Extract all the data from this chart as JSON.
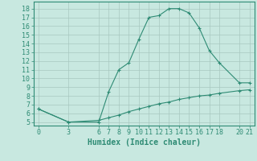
{
  "line1_x": [
    0,
    3,
    6,
    7,
    8,
    9,
    10,
    11,
    12,
    13,
    14,
    15,
    16,
    17,
    18,
    20,
    21
  ],
  "line1_y": [
    6.5,
    5.0,
    5.0,
    8.5,
    11.0,
    11.8,
    14.5,
    17.0,
    17.2,
    18.0,
    18.0,
    17.5,
    15.8,
    13.2,
    11.8,
    9.5,
    9.5
  ],
  "line2_x": [
    0,
    3,
    6,
    7,
    8,
    9,
    10,
    11,
    12,
    13,
    14,
    15,
    16,
    17,
    18,
    20,
    21
  ],
  "line2_y": [
    6.5,
    5.0,
    5.2,
    5.5,
    5.8,
    6.2,
    6.5,
    6.8,
    7.1,
    7.3,
    7.6,
    7.8,
    8.0,
    8.1,
    8.3,
    8.6,
    8.7
  ],
  "line_color": "#2e8b74",
  "bg_color": "#c8e8e0",
  "grid_color": "#a8c8c0",
  "xlabel": "Humidex (Indice chaleur)",
  "xticks": [
    0,
    3,
    6,
    7,
    8,
    9,
    10,
    11,
    12,
    13,
    14,
    15,
    16,
    17,
    18,
    20,
    21
  ],
  "yticks": [
    5,
    6,
    7,
    8,
    9,
    10,
    11,
    12,
    13,
    14,
    15,
    16,
    17,
    18
  ],
  "xlim": [
    -0.5,
    21.5
  ],
  "ylim": [
    4.6,
    18.8
  ],
  "xlabel_fontsize": 7,
  "tick_fontsize": 6,
  "marker": "+"
}
